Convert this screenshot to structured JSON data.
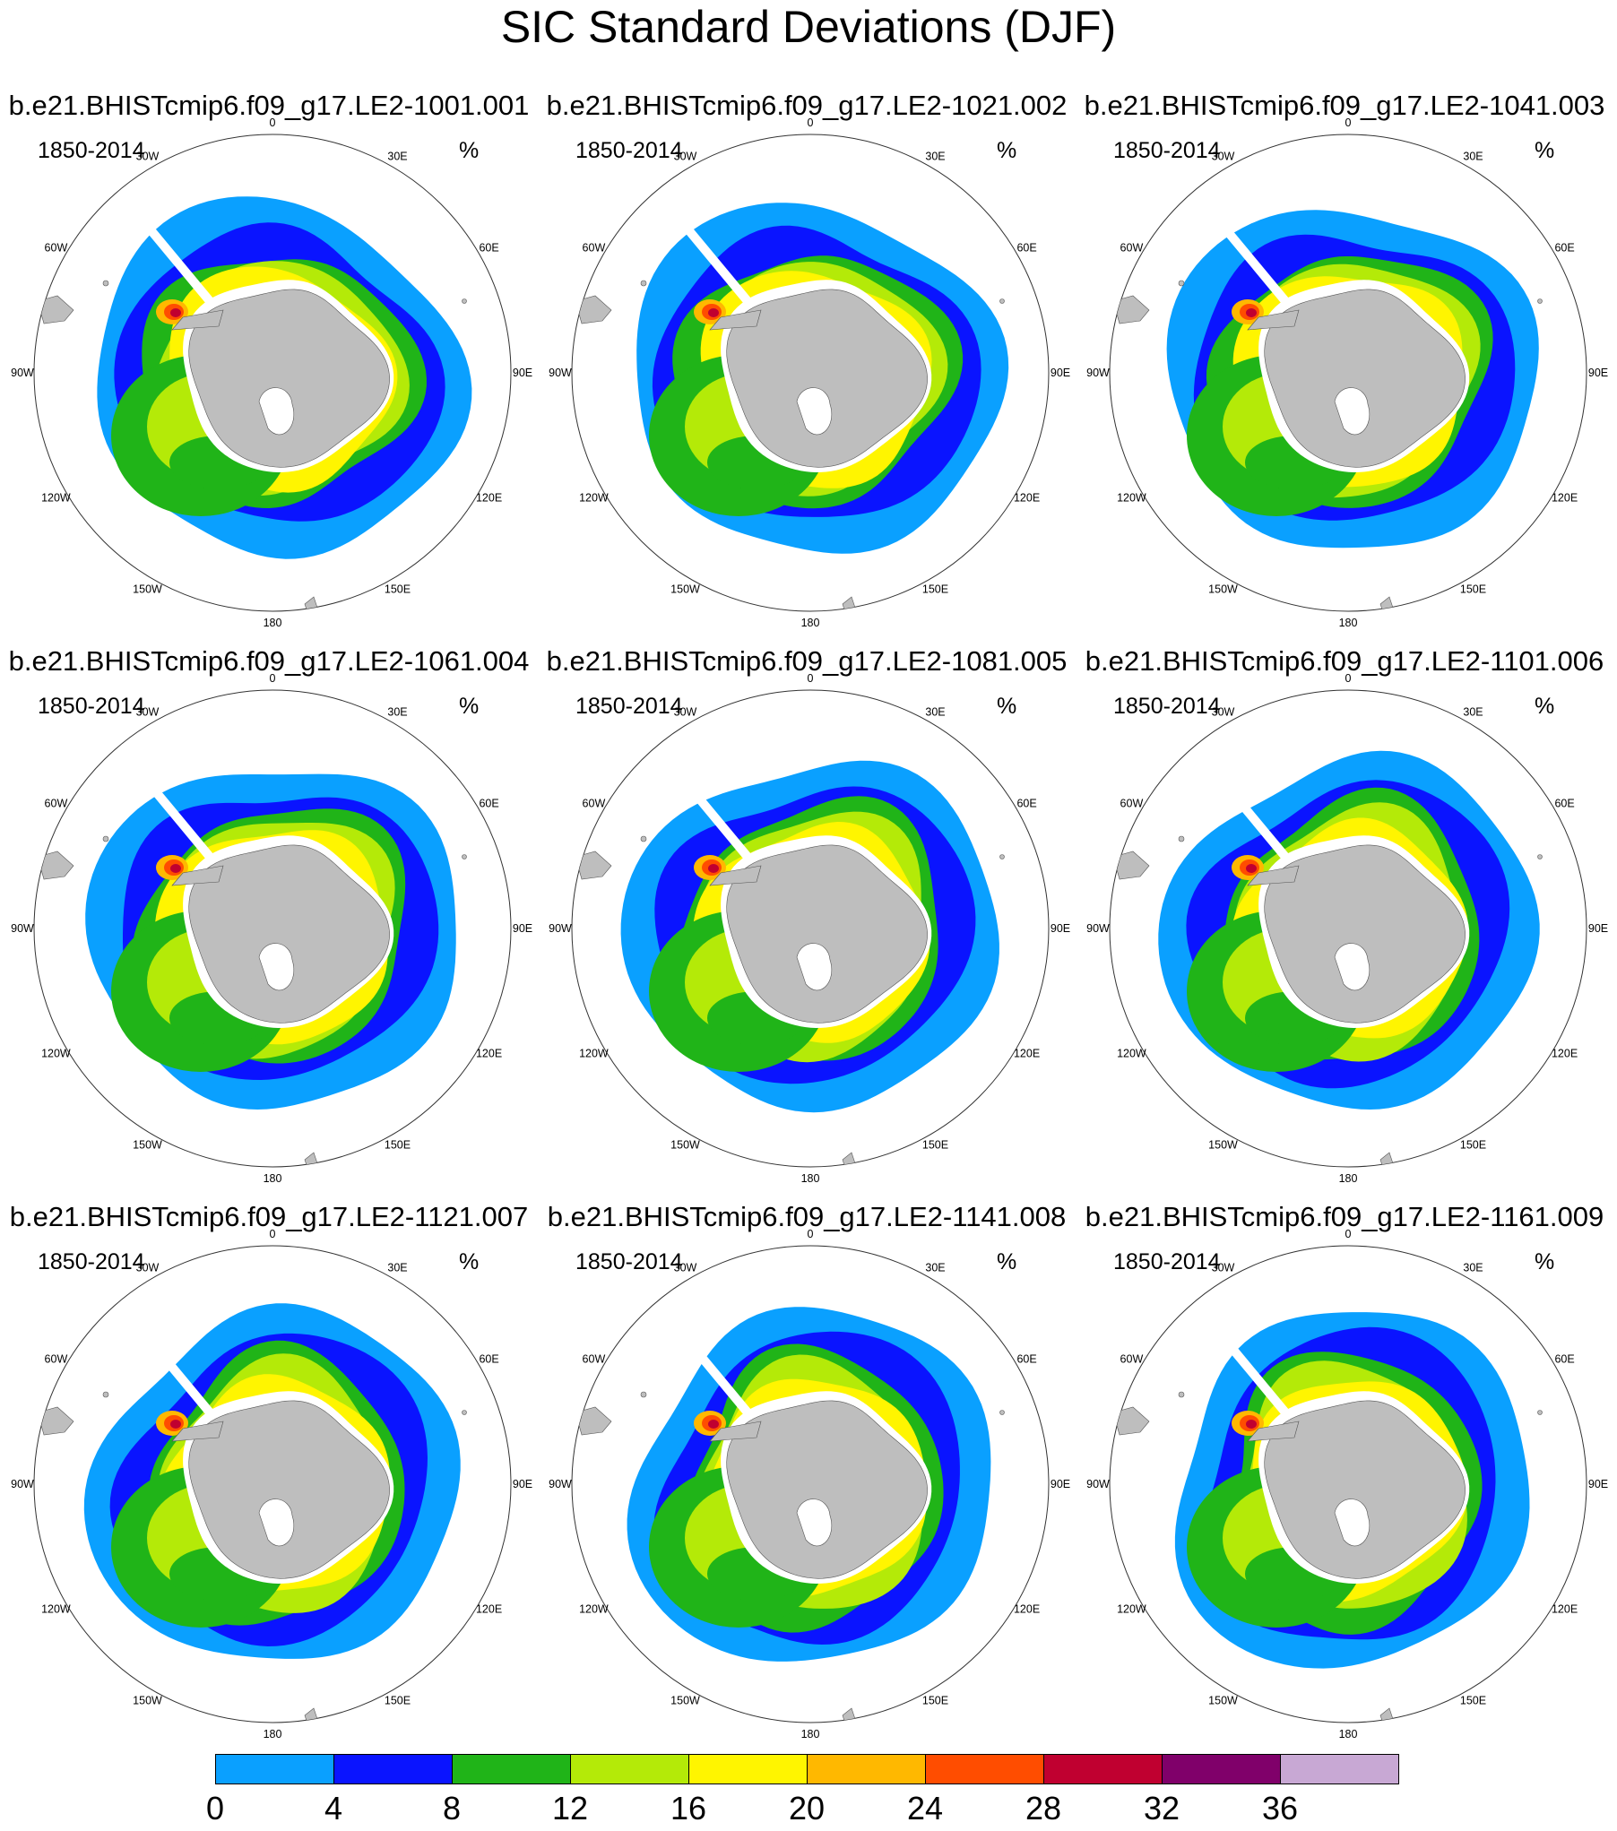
{
  "figure": {
    "title": "SIC Standard Deviations (DJF)"
  },
  "panels": [
    {
      "title": "b.e21.BHISTcmip6.f09_g17.LE2-1001.001",
      "period": "1850-2014",
      "units": "%"
    },
    {
      "title": "b.e21.BHISTcmip6.f09_g17.LE2-1021.002",
      "period": "1850-2014",
      "units": "%"
    },
    {
      "title": "b.e21.BHISTcmip6.f09_g17.LE2-1041.003",
      "period": "1850-2014",
      "units": "%"
    },
    {
      "title": "b.e21.BHISTcmip6.f09_g17.LE2-1061.004",
      "period": "1850-2014",
      "units": "%"
    },
    {
      "title": "b.e21.BHISTcmip6.f09_g17.LE2-1081.005",
      "period": "1850-2014",
      "units": "%"
    },
    {
      "title": "b.e21.BHISTcmip6.f09_g17.LE2-1101.006",
      "period": "1850-2014",
      "units": "%"
    },
    {
      "title": "b.e21.BHISTcmip6.f09_g17.LE2-1121.007",
      "period": "1850-2014",
      "units": "%"
    },
    {
      "title": "b.e21.BHISTcmip6.f09_g17.LE2-1141.008",
      "period": "1850-2014",
      "units": "%"
    },
    {
      "title": "b.e21.BHISTcmip6.f09_g17.LE2-1161.009",
      "period": "1850-2014",
      "units": "%"
    }
  ],
  "map": {
    "projection": "south polar stereographic",
    "longitude_labels": [
      "0",
      "30E",
      "60E",
      "90E",
      "120E",
      "150E",
      "180",
      "150W",
      "120W",
      "90W",
      "60W",
      "30W"
    ],
    "land_color": "#bebebe"
  },
  "colorbar": {
    "tick_labels": [
      "0",
      "4",
      "8",
      "12",
      "16",
      "20",
      "24",
      "28",
      "32",
      "36"
    ],
    "levels": [
      0,
      4,
      8,
      12,
      16,
      20,
      24,
      28,
      32,
      36
    ],
    "colors": [
      "#0aa0ff",
      "#0a14ff",
      "#20b418",
      "#b4ea08",
      "#fff500",
      "#ffb800",
      "#ff4d00",
      "#c00030",
      "#80006a",
      "#c8a8d4"
    ]
  }
}
